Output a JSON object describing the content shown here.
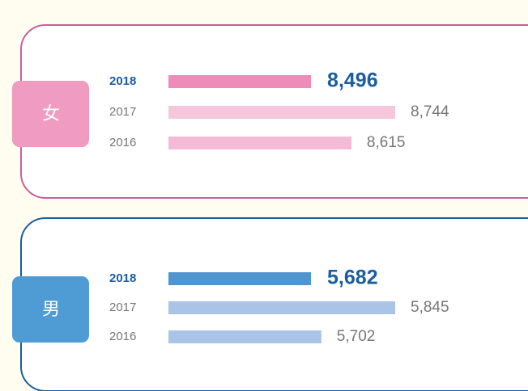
{
  "chart_data": [
    {
      "type": "bar",
      "title": "女",
      "categories": [
        "2018",
        "2017",
        "2016"
      ],
      "values": [
        8496,
        8744,
        8615
      ],
      "value_labels": [
        "8,496",
        "8,744",
        "8,615"
      ],
      "colors": [
        "#ee8bb8",
        "#f6c6dc",
        "#f4bad6"
      ],
      "xlim": [
        8076,
        8744
      ]
    },
    {
      "type": "bar",
      "title": "男",
      "categories": [
        "2018",
        "2017",
        "2016"
      ],
      "values": [
        5682,
        5845,
        5702
      ],
      "value_labels": [
        "5,682",
        "5,845",
        "5,702"
      ],
      "colors": [
        "#4f95cf",
        "#a9c4e7",
        "#a9c4e7"
      ],
      "xlim": [
        5406,
        5845
      ]
    }
  ]
}
